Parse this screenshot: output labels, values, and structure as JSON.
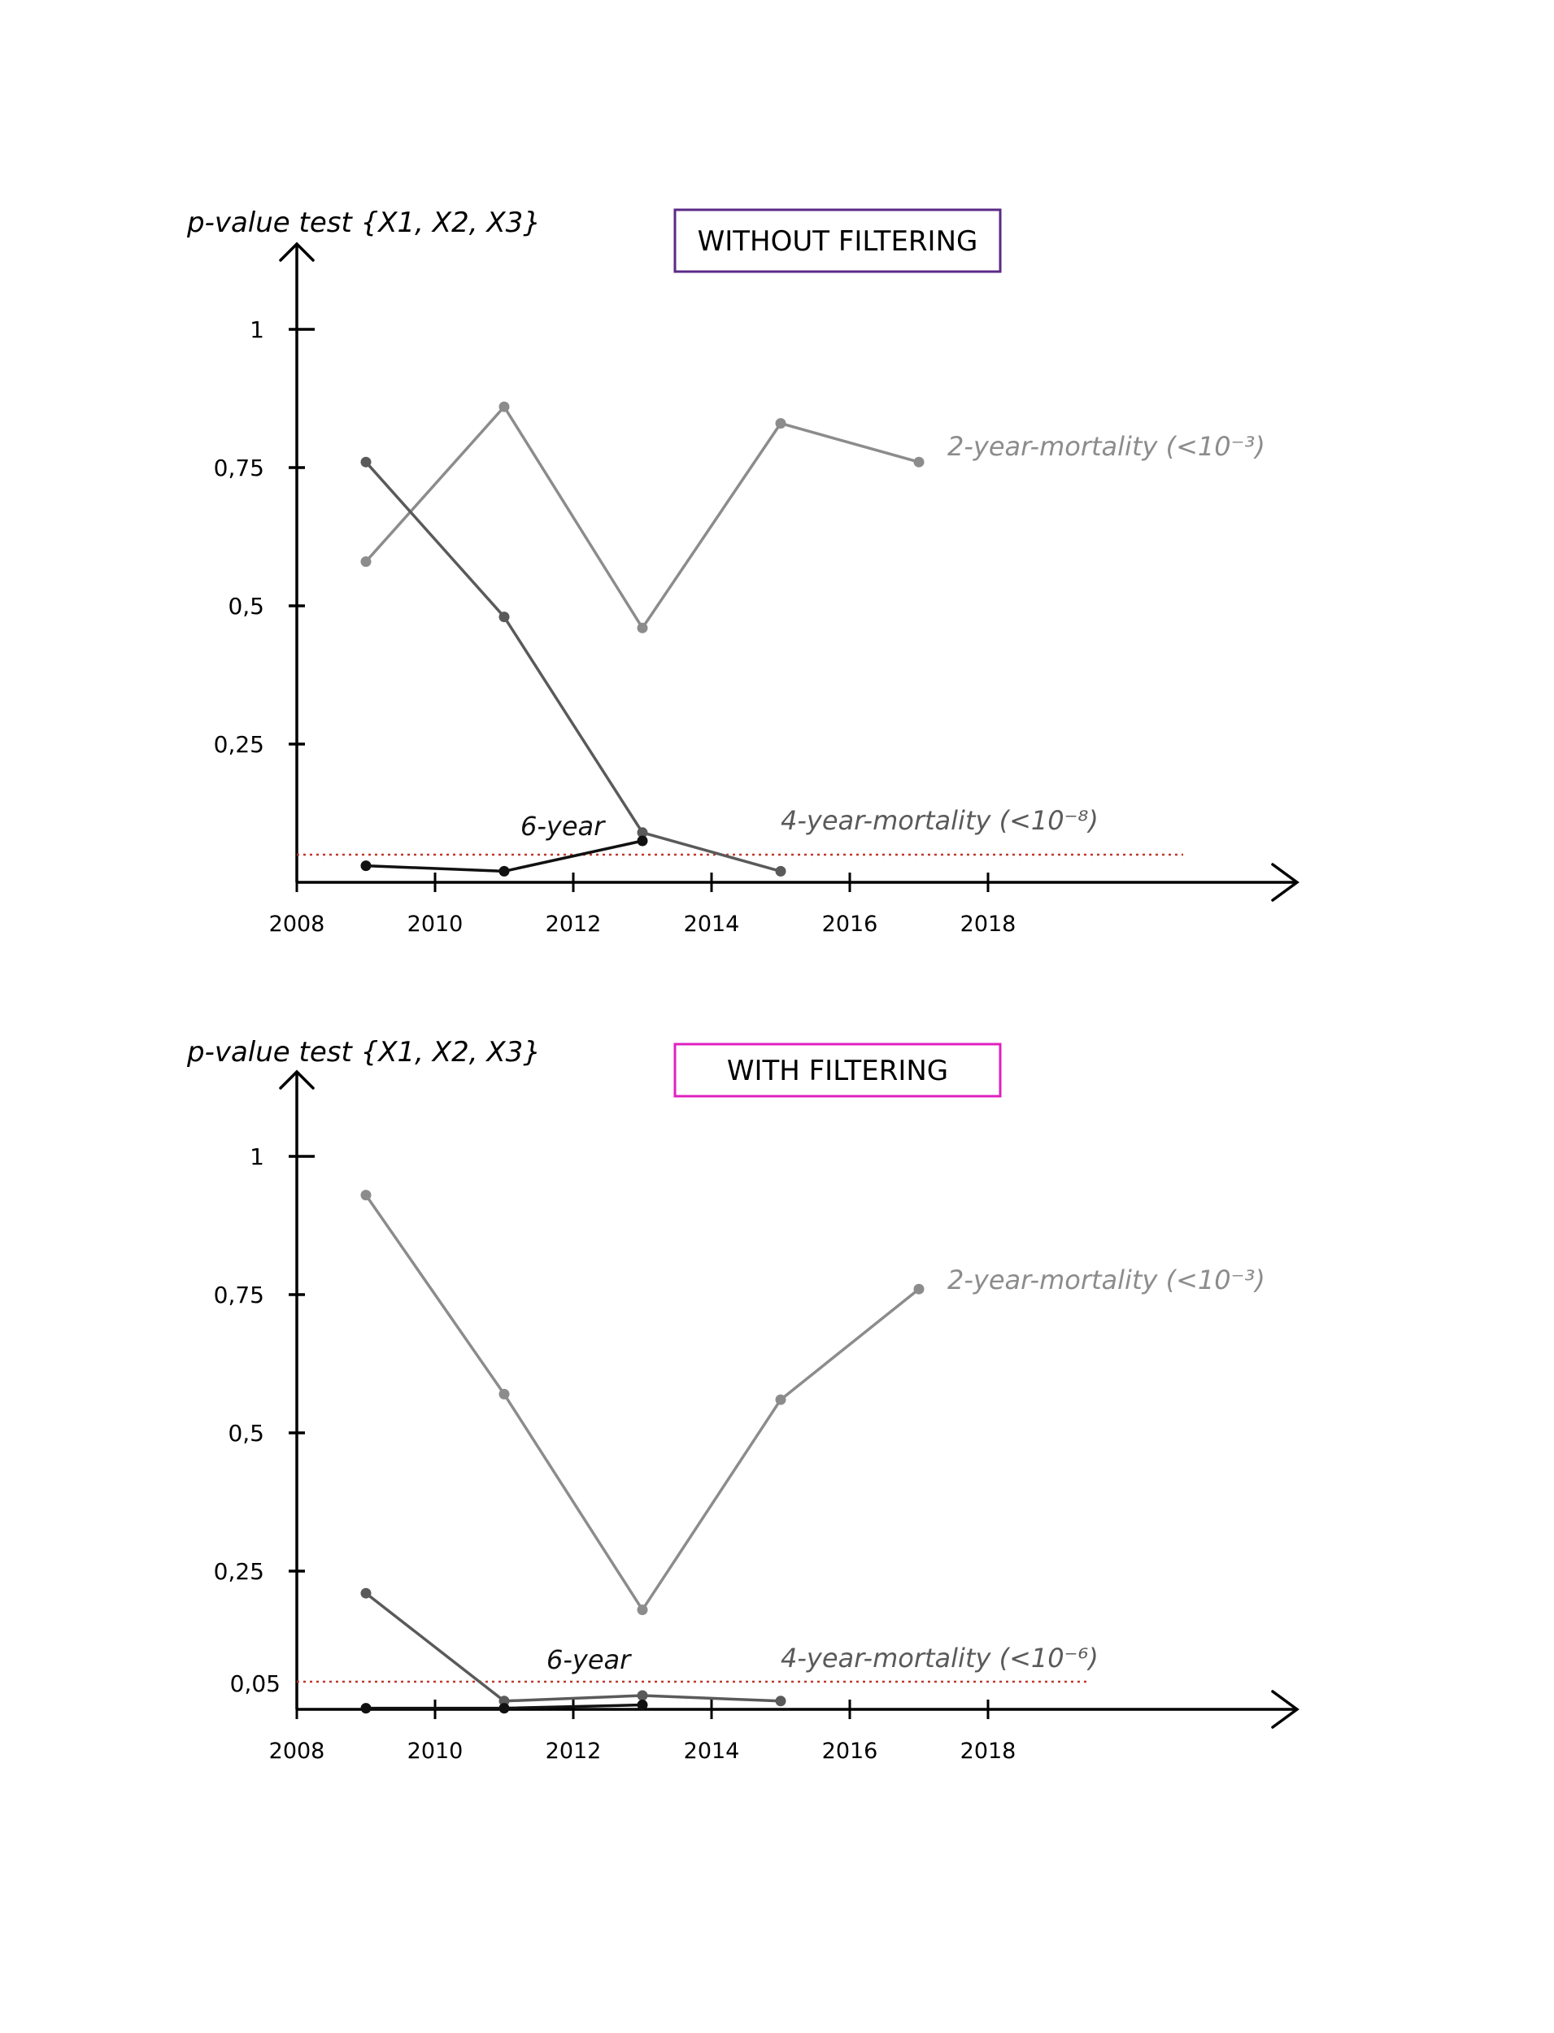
{
  "chart_data": [
    {
      "type": "line",
      "title": "WITHOUT FILTERING",
      "title_box_color": "#5b2a86",
      "ylabel": "p-value test {X1, X2, X3}",
      "xlabel": "",
      "xlim": [
        2008,
        2021
      ],
      "ylim": [
        0,
        1.1
      ],
      "x_ticks": [
        2008,
        2010,
        2012,
        2014,
        2016,
        2018
      ],
      "x_tick_labels": [
        "2008",
        "2010",
        "2012",
        "2014",
        "2016",
        "2018"
      ],
      "y_ticks": [
        1,
        0.75,
        0.5,
        0.25
      ],
      "y_tick_labels": [
        "1",
        "0,75",
        "0,5",
        "0,25"
      ],
      "threshold": {
        "value": 0.05,
        "color": "#c0392b",
        "label": ""
      },
      "grid": false,
      "series": [
        {
          "name": "2-year-mortality (<10⁻³)",
          "color": "#8c8c8c",
          "x": [
            2009,
            2011,
            2013,
            2015,
            2017
          ],
          "y": [
            0.58,
            0.86,
            0.46,
            0.83,
            0.76
          ]
        },
        {
          "name": "4-year-mortality (<10⁻⁸)",
          "color": "#5a5a5a",
          "x": [
            2009,
            2011,
            2013,
            2015
          ],
          "y": [
            0.76,
            0.48,
            0.09,
            0.02
          ]
        },
        {
          "name": "6-year",
          "color": "#111111",
          "x": [
            2009,
            2011,
            2013
          ],
          "y": [
            0.03,
            0.02,
            0.075
          ]
        }
      ]
    },
    {
      "type": "line",
      "title": "WITH FILTERING",
      "title_box_color": "#e020c0",
      "ylabel": "p-value test {X1, X2, X3}",
      "xlabel": "",
      "xlim": [
        2008,
        2021
      ],
      "ylim": [
        0,
        1.1
      ],
      "x_ticks": [
        2008,
        2010,
        2012,
        2014,
        2016,
        2018
      ],
      "x_tick_labels": [
        "2008",
        "2010",
        "2012",
        "2014",
        "2016",
        "2018"
      ],
      "y_ticks": [
        1,
        0.75,
        0.5,
        0.25
      ],
      "y_tick_labels": [
        "1",
        "0,75",
        "0,5",
        "0,25"
      ],
      "threshold": {
        "value": 0.05,
        "color": "#c0392b",
        "label": "0,05"
      },
      "grid": false,
      "series": [
        {
          "name": "2-year-mortality (<10⁻³)",
          "color": "#8c8c8c",
          "x": [
            2009,
            2011,
            2013,
            2015,
            2017
          ],
          "y": [
            0.93,
            0.57,
            0.18,
            0.56,
            0.76
          ]
        },
        {
          "name": "4-year-mortality (<10⁻⁶)",
          "color": "#5a5a5a",
          "x": [
            2009,
            2011,
            2013,
            2015
          ],
          "y": [
            0.21,
            0.015,
            0.025,
            0.015
          ]
        },
        {
          "name": "6-year",
          "color": "#111111",
          "x": [
            2009,
            2011,
            2013
          ],
          "y": [
            0.002,
            0.002,
            0.008
          ]
        }
      ]
    }
  ]
}
